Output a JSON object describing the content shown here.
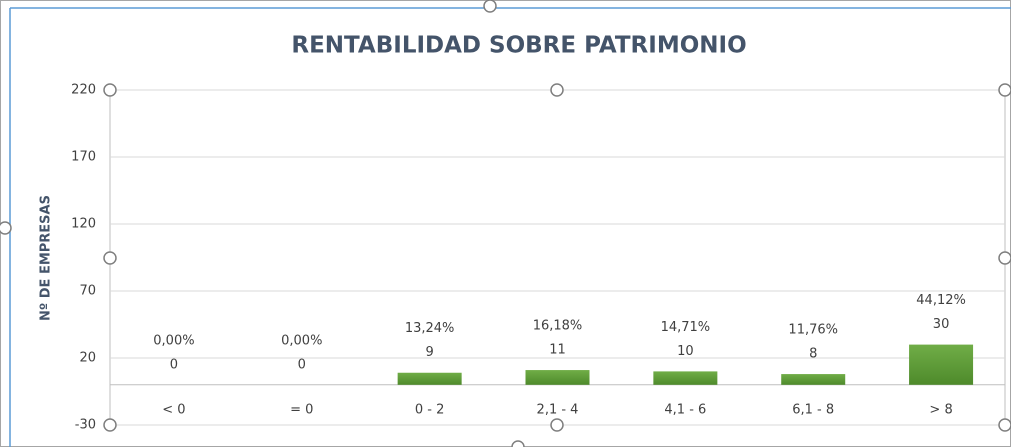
{
  "chart_data": {
    "type": "bar",
    "title": "RENTABILIDAD SOBRE PATRIMONIO",
    "y_label": "Nº DE EMPRESAS",
    "categories": [
      "< 0",
      "= 0",
      "0 - 2",
      "2,1 - 4",
      "4,1 - 6",
      "6,1 - 8",
      "> 8"
    ],
    "values": [
      0,
      0,
      9,
      11,
      10,
      8,
      30
    ],
    "shares": [
      0,
      0,
      13.24,
      16.18,
      14.71,
      11.76,
      44.12
    ],
    "share_labels": [
      "0,00%",
      "0,00%",
      "13,24%",
      "16,18%",
      "14,71%",
      "11,76%",
      "44,12%"
    ],
    "color": "#70ad47",
    "ylim": [
      -30,
      220
    ],
    "yticks": [
      -30,
      20,
      70,
      120,
      170,
      220
    ],
    "grid": true
  }
}
